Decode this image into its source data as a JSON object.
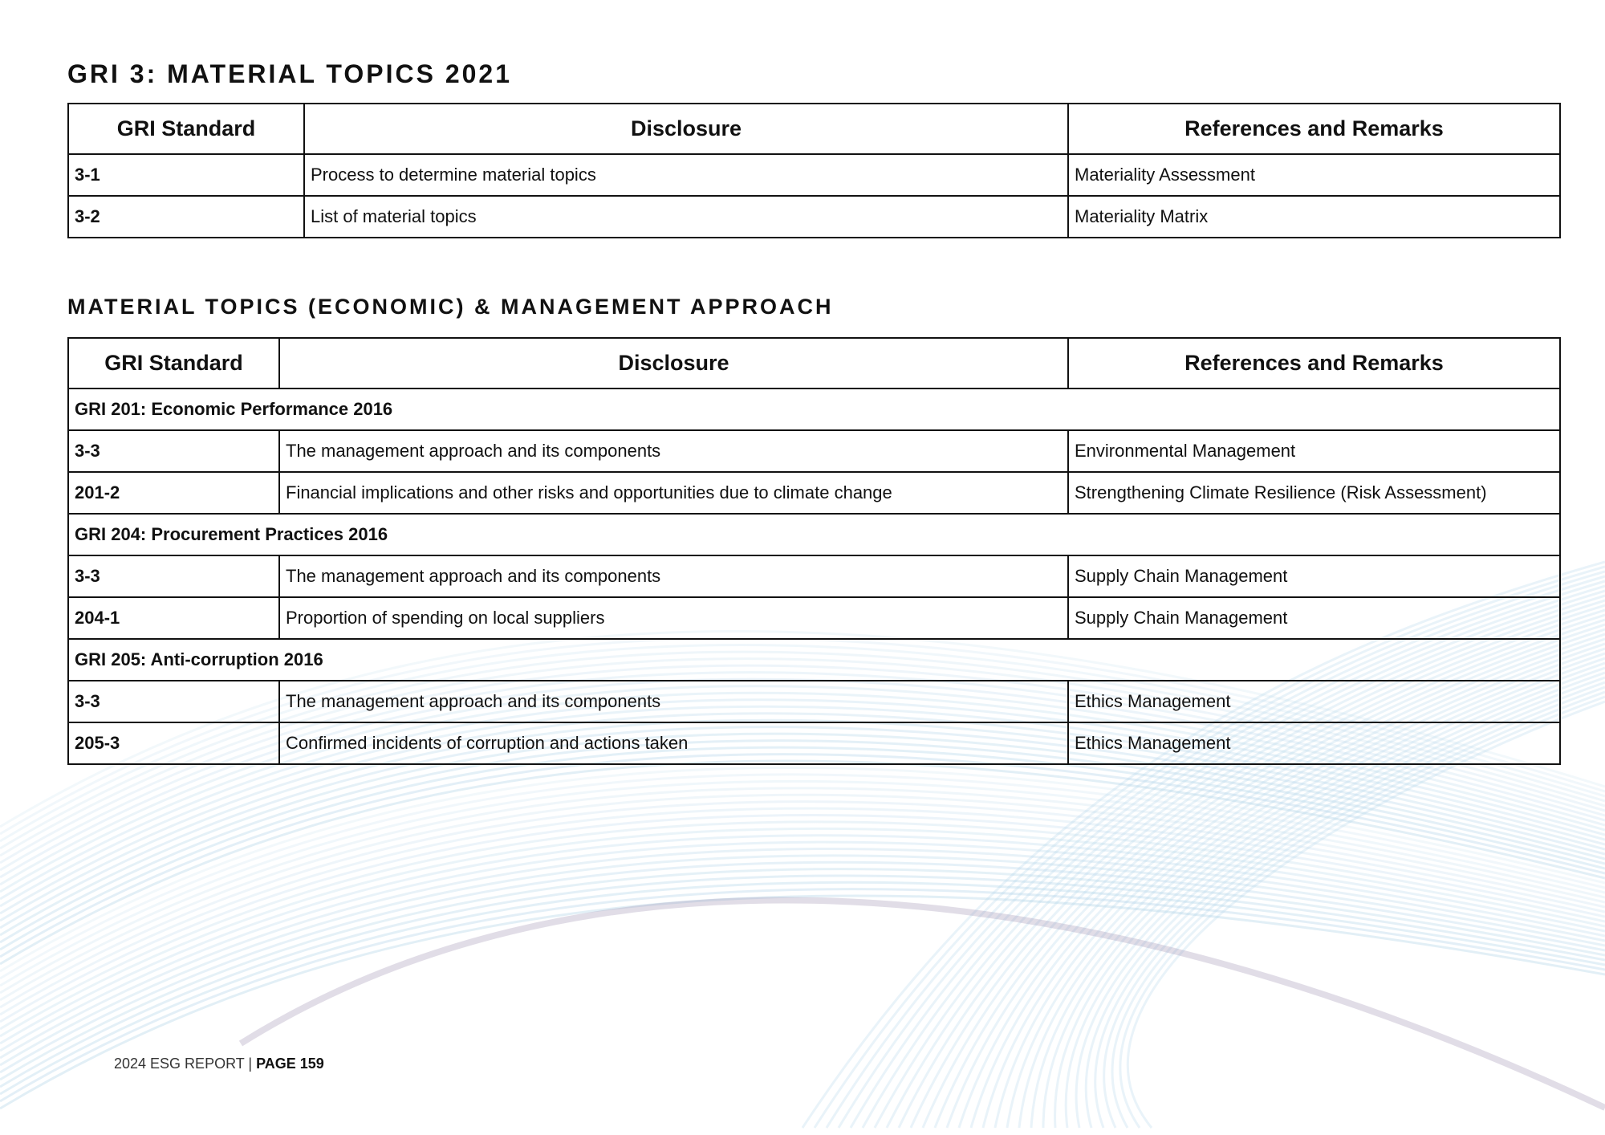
{
  "section1": {
    "title": "GRI 3: MATERIAL TOPICS 2021",
    "headers": [
      "GRI Standard",
      "Disclosure",
      "References and Remarks"
    ],
    "rows": [
      {
        "code": "3-1",
        "disclosure": "Process to determine material topics",
        "reference": "Materiality Assessment"
      },
      {
        "code": "3-2",
        "disclosure": "List of material topics",
        "reference": "Materiality Matrix"
      }
    ]
  },
  "section2": {
    "title": "MATERIAL TOPICS (ECONOMIC) & MANAGEMENT APPROACH",
    "headers": [
      "GRI Standard",
      "Disclosure",
      "References and Remarks"
    ],
    "groups": [
      {
        "name": "GRI 201: Economic Performance 2016",
        "rows": [
          {
            "code": "3-3",
            "disclosure": "The management approach and its components",
            "reference": "Environmental Management"
          },
          {
            "code": "201-2",
            "disclosure": "Financial implications and other risks and opportunities due to climate change",
            "reference": "Strengthening Climate Resilience (Risk Assessment)"
          }
        ]
      },
      {
        "name": "GRI 204: Procurement Practices 2016",
        "rows": [
          {
            "code": "3-3",
            "disclosure": "The management approach and its components",
            "reference": "Supply Chain Management"
          },
          {
            "code": "204-1",
            "disclosure": "Proportion of spending on local suppliers",
            "reference": "Supply Chain Management"
          }
        ]
      },
      {
        "name": "GRI 205: Anti-corruption 2016",
        "rows": [
          {
            "code": "3-3",
            "disclosure": "The management approach and its components",
            "reference": "Ethics Management"
          },
          {
            "code": "205-3",
            "disclosure": "Confirmed incidents of corruption and actions taken",
            "reference": "Ethics Management"
          }
        ]
      }
    ]
  },
  "footer": {
    "report": "2024 ESG REPORT | ",
    "page": "PAGE 159"
  },
  "colors": {
    "wave_blue": "#a9cfe6",
    "wave_mauve": "#9a8fb0"
  }
}
